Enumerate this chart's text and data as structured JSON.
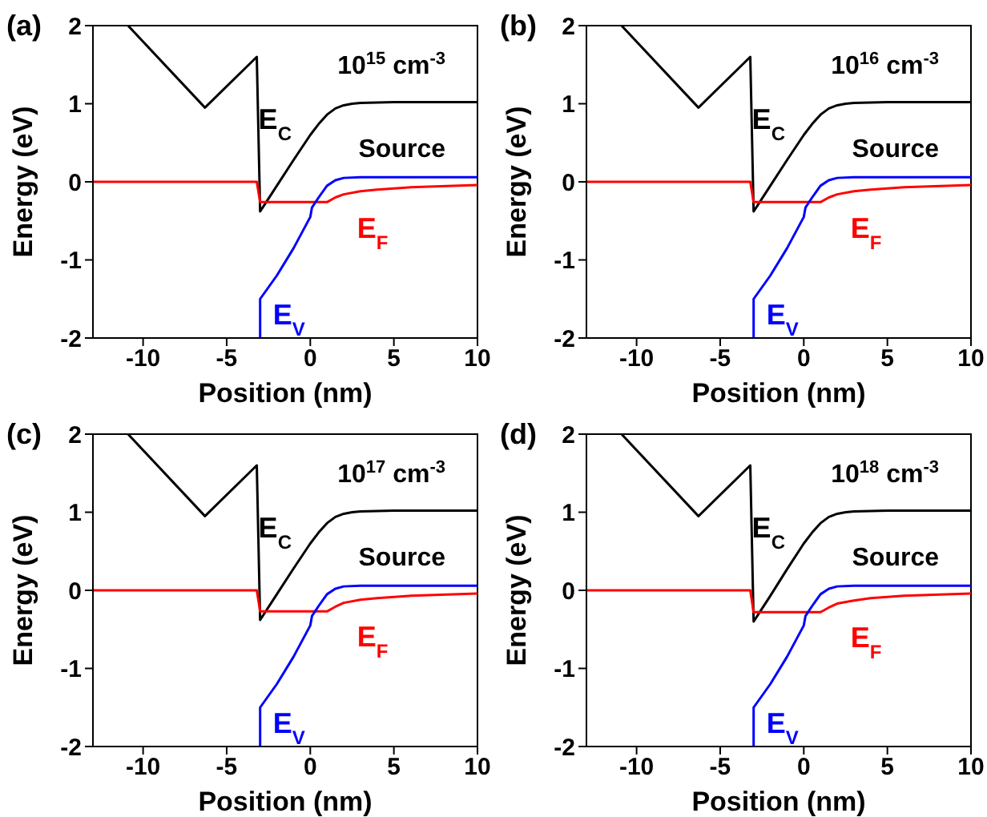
{
  "chart_data": [
    {
      "type": "line",
      "xlabel": "Position (nm)",
      "ylabel": "Energy (eV)",
      "xlim": [
        -13,
        10
      ],
      "ylim": [
        -2,
        2
      ],
      "xticks": [
        -10,
        -5,
        0,
        5,
        10
      ],
      "yticks": [
        -2,
        -1,
        0,
        1,
        2
      ],
      "annotations": [
        "(a)",
        "10$^{15}$ cm$^{-3}$",
        "Source"
      ],
      "series": [
        {
          "name": "E$_{C}$",
          "color": "#000000",
          "x": [
            -10.9,
            -6.3,
            -3.2,
            -3.0,
            -2,
            -1,
            0,
            0.5,
            1,
            1.5,
            2,
            2.5,
            3,
            5,
            10
          ],
          "values": [
            2,
            0.95,
            1.6,
            -0.38,
            -0.05,
            0.28,
            0.6,
            0.74,
            0.86,
            0.94,
            0.98,
            1.0,
            1.01,
            1.02,
            1.02
          ]
        },
        {
          "name": "E$_{F}$",
          "color": "#ff0000",
          "x": [
            -13,
            -3.2,
            -3.0,
            1.0,
            1.5,
            2,
            3,
            4,
            6,
            10
          ],
          "values": [
            0,
            0,
            -0.26,
            -0.26,
            -0.2,
            -0.16,
            -0.12,
            -0.1,
            -0.07,
            -0.04
          ]
        },
        {
          "name": "E$_{V}$",
          "color": "#0000ff",
          "x": [
            -3.0,
            -3.0,
            -2,
            -1,
            0,
            0.1,
            0.5,
            1,
            1.5,
            2,
            3,
            10
          ],
          "values": [
            -2,
            -1.5,
            -1.2,
            -0.85,
            -0.45,
            -0.33,
            -0.2,
            -0.05,
            0.02,
            0.05,
            0.06,
            0.06
          ]
        }
      ]
    },
    {
      "type": "line",
      "xlabel": "Position (nm)",
      "ylabel": "Energy (eV)",
      "xlim": [
        -13,
        10
      ],
      "ylim": [
        -2,
        2
      ],
      "xticks": [
        -10,
        -5,
        0,
        5,
        10
      ],
      "yticks": [
        -2,
        -1,
        0,
        1,
        2
      ],
      "annotations": [
        "(b)",
        "10$^{16}$ cm$^{-3}$",
        "Source"
      ],
      "series": [
        {
          "name": "E$_{C}$",
          "color": "#000000",
          "x": [
            -10.9,
            -6.3,
            -3.2,
            -3.0,
            -2,
            -1,
            0,
            0.5,
            1,
            1.5,
            2,
            2.5,
            3,
            5,
            10
          ],
          "values": [
            2,
            0.95,
            1.6,
            -0.38,
            -0.05,
            0.28,
            0.6,
            0.74,
            0.86,
            0.94,
            0.98,
            1.0,
            1.01,
            1.02,
            1.02
          ]
        },
        {
          "name": "E$_{F}$",
          "color": "#ff0000",
          "x": [
            -13,
            -3.2,
            -3.0,
            1.0,
            1.5,
            2,
            3,
            4,
            6,
            10
          ],
          "values": [
            0,
            0,
            -0.26,
            -0.26,
            -0.2,
            -0.16,
            -0.12,
            -0.1,
            -0.07,
            -0.04
          ]
        },
        {
          "name": "E$_{V}$",
          "color": "#0000ff",
          "x": [
            -3.0,
            -3.0,
            -2,
            -1,
            0,
            0.1,
            0.5,
            1,
            1.5,
            2,
            3,
            10
          ],
          "values": [
            -2,
            -1.5,
            -1.2,
            -0.85,
            -0.45,
            -0.33,
            -0.2,
            -0.05,
            0.02,
            0.05,
            0.06,
            0.06
          ]
        }
      ]
    },
    {
      "type": "line",
      "xlabel": "Position (nm)",
      "ylabel": "Energy (eV)",
      "xlim": [
        -13,
        10
      ],
      "ylim": [
        -2,
        2
      ],
      "xticks": [
        -10,
        -5,
        0,
        5,
        10
      ],
      "yticks": [
        -2,
        -1,
        0,
        1,
        2
      ],
      "annotations": [
        "(c)",
        "10$^{17}$ cm$^{-3}$",
        "Source"
      ],
      "series": [
        {
          "name": "E$_{C}$",
          "color": "#000000",
          "x": [
            -10.9,
            -6.3,
            -3.2,
            -3.0,
            -2,
            -1,
            0,
            0.5,
            1,
            1.5,
            2,
            2.5,
            3,
            5,
            10
          ],
          "values": [
            2,
            0.95,
            1.6,
            -0.38,
            -0.05,
            0.28,
            0.6,
            0.74,
            0.86,
            0.94,
            0.98,
            1.0,
            1.01,
            1.02,
            1.02
          ]
        },
        {
          "name": "E$_{F}$",
          "color": "#ff0000",
          "x": [
            -13,
            -3.2,
            -3.0,
            1.0,
            1.5,
            2,
            3,
            4,
            6,
            10
          ],
          "values": [
            0,
            0,
            -0.27,
            -0.27,
            -0.21,
            -0.16,
            -0.12,
            -0.1,
            -0.07,
            -0.04
          ]
        },
        {
          "name": "E$_{V}$",
          "color": "#0000ff",
          "x": [
            -3.0,
            -3.0,
            -2,
            -1,
            0,
            0.1,
            0.5,
            1,
            1.5,
            2,
            3,
            10
          ],
          "values": [
            -2,
            -1.5,
            -1.2,
            -0.85,
            -0.45,
            -0.33,
            -0.2,
            -0.05,
            0.02,
            0.05,
            0.06,
            0.06
          ]
        }
      ]
    },
    {
      "type": "line",
      "xlabel": "Position (nm)",
      "ylabel": "Energy (eV)",
      "xlim": [
        -13,
        10
      ],
      "ylim": [
        -2,
        2
      ],
      "xticks": [
        -10,
        -5,
        0,
        5,
        10
      ],
      "yticks": [
        -2,
        -1,
        0,
        1,
        2
      ],
      "annotations": [
        "(d)",
        "10$^{18}$ cm$^{-3}$",
        "Source"
      ],
      "series": [
        {
          "name": "E$_{C}$",
          "color": "#000000",
          "x": [
            -10.9,
            -6.3,
            -3.2,
            -3.0,
            -2,
            -1,
            0,
            0.5,
            1,
            1.5,
            2,
            2.5,
            3,
            5,
            10
          ],
          "values": [
            2,
            0.95,
            1.6,
            -0.4,
            -0.07,
            0.27,
            0.6,
            0.74,
            0.86,
            0.94,
            0.98,
            1.0,
            1.01,
            1.02,
            1.02
          ]
        },
        {
          "name": "E$_{F}$",
          "color": "#ff0000",
          "x": [
            -13,
            -3.2,
            -3.0,
            1.0,
            1.5,
            2,
            3,
            4,
            6,
            10
          ],
          "values": [
            0,
            0,
            -0.28,
            -0.28,
            -0.22,
            -0.17,
            -0.13,
            -0.1,
            -0.07,
            -0.04
          ]
        },
        {
          "name": "E$_{V}$",
          "color": "#0000ff",
          "x": [
            -3.0,
            -3.0,
            -2,
            -1,
            0,
            0.1,
            0.5,
            1,
            1.5,
            2,
            3,
            10
          ],
          "values": [
            -2,
            -1.5,
            -1.2,
            -0.85,
            -0.45,
            -0.33,
            -0.2,
            -0.05,
            0.02,
            0.05,
            0.06,
            0.06
          ]
        }
      ]
    }
  ]
}
